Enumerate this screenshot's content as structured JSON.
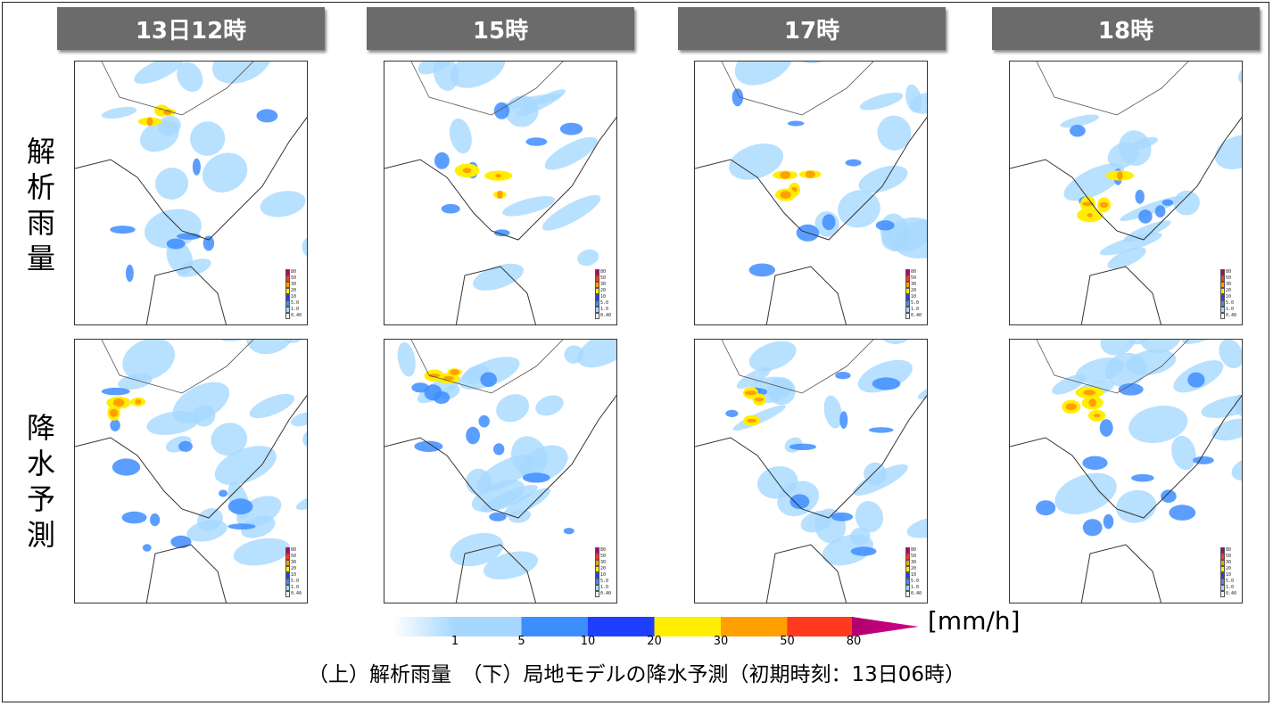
{
  "headers": [
    "13日12時",
    "15時",
    "17時",
    "18時"
  ],
  "row_labels": [
    "解析雨量",
    "降水予測"
  ],
  "panel_legend": {
    "labels": [
      "80",
      "50",
      "30",
      "20",
      "10",
      "5.0",
      "1.0",
      "0.40"
    ],
    "colors": [
      "#b0006e",
      "#ff3a1e",
      "#ff9f00",
      "#ffee00",
      "#1f3fff",
      "#3e8dff",
      "#a6d8ff",
      "#f4f4f4"
    ]
  },
  "color_scale": {
    "ticks": [
      "1",
      "5",
      "10",
      "20",
      "30",
      "50",
      "80"
    ],
    "colors": [
      "#a6d8ff",
      "#3e8dff",
      "#1f3fff",
      "#ffee00",
      "#ff9f00",
      "#ff3a1e",
      "#b0006e"
    ],
    "unit": "[mm/h]"
  },
  "caption": "（上）解析雨量　（下）局地モデルの降水予測（初期時刻：13日06時）"
}
